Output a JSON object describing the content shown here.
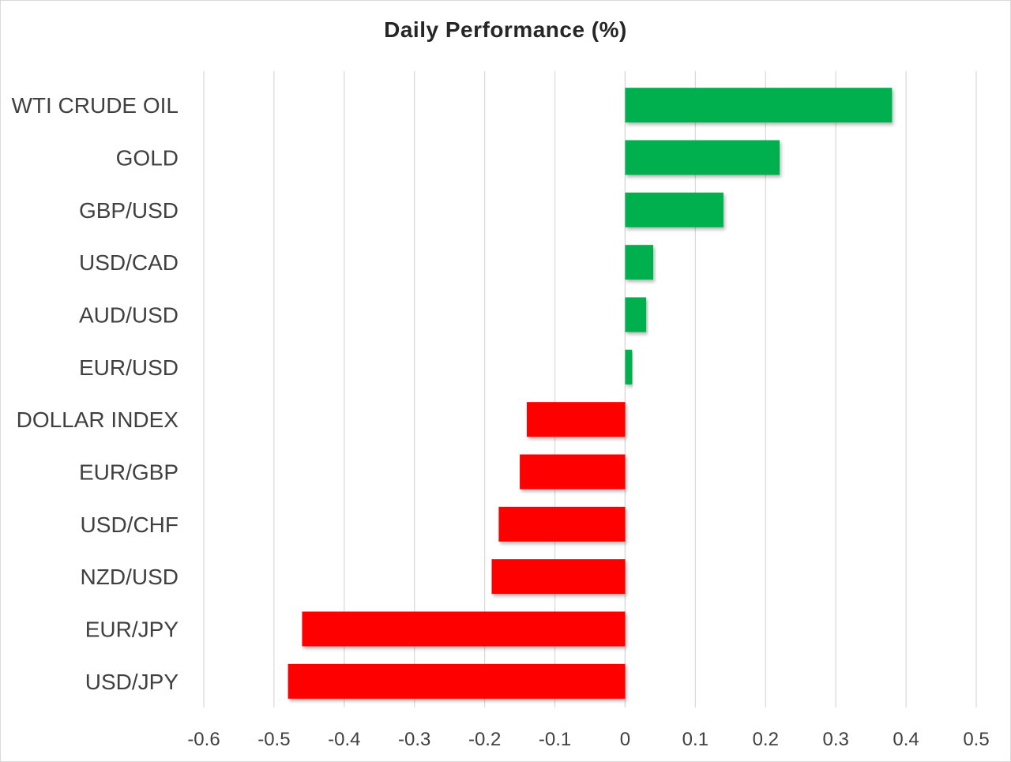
{
  "chart_data": {
    "type": "bar",
    "orientation": "horizontal",
    "title": "Daily Performance  (%)",
    "xlabel": "",
    "ylabel": "",
    "categories": [
      "WTI CRUDE OIL",
      "GOLD",
      "GBP/USD",
      "USD/CAD",
      "AUD/USD",
      "EUR/USD",
      "DOLLAR INDEX",
      "EUR/GBP",
      "USD/CHF",
      "NZD/USD",
      "EUR/JPY",
      "USD/JPY"
    ],
    "values": [
      0.38,
      0.22,
      0.14,
      0.04,
      0.03,
      0.01,
      -0.14,
      -0.15,
      -0.18,
      -0.19,
      -0.46,
      -0.48
    ],
    "xlim": [
      -0.6,
      0.5
    ],
    "xticks": [
      -0.6,
      -0.5,
      -0.4,
      -0.3,
      -0.2,
      -0.1,
      0,
      0.1,
      0.2,
      0.3,
      0.4,
      0.5
    ],
    "tick_labels": [
      "-0.6",
      "-0.5",
      "-0.4",
      "-0.3",
      "-0.2",
      "-0.1",
      "0",
      "0.1",
      "0.2",
      "0.3",
      "0.4",
      "0.5"
    ],
    "grid": "vertical",
    "legend": "none",
    "colors": {
      "positive": "#00b050",
      "negative": "#ff0000",
      "grid": "#d9d9d9",
      "text": "#404040"
    }
  }
}
